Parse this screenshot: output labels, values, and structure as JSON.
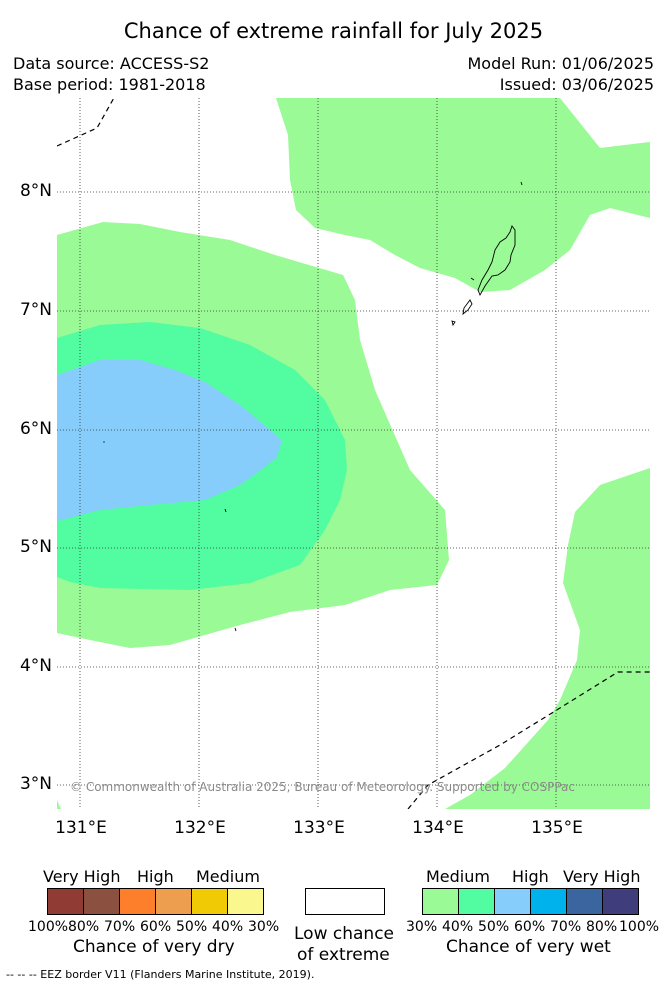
{
  "title": "Chance of extreme rainfall for July 2025",
  "header": {
    "data_source": "Data source: ACCESS-S2",
    "base_period": "Base period: 1981-2018",
    "model_run": "Model Run: 01/06/2025",
    "issued": "Issued: 03/06/2025"
  },
  "map": {
    "lon_ticks": [
      "131°E",
      "132°E",
      "133°E",
      "134°E",
      "135°E"
    ],
    "lat_ticks": [
      "8°N",
      "7°N",
      "6°N",
      "5°N",
      "4°N",
      "3°N"
    ],
    "copyright": "© Commonwealth of Australia 2025, Bureau of Meteorology. Supported by COSPPac",
    "zone_colors": {
      "wet_30_40": "#9afa95",
      "wet_40_50": "#52fca1",
      "wet_50_60": "#87cdfb",
      "land_outline": "#000000",
      "eez_border": "#000000"
    }
  },
  "legend": {
    "dry": {
      "categories": [
        "Very High",
        "High",
        "Medium"
      ],
      "colors": [
        "#903c35",
        "#8b5040",
        "#fe7f2b",
        "#ed9e4e",
        "#f0ca04",
        "#faf78e"
      ],
      "percents": [
        "100%",
        "80%",
        "70%",
        "60%",
        "50%",
        "40%",
        "30%"
      ],
      "caption": "Chance of very dry"
    },
    "low": {
      "caption_line1": "Low chance",
      "caption_line2": "of extreme",
      "color": "#ffffff"
    },
    "wet": {
      "categories": [
        "Medium",
        "High",
        "Very High"
      ],
      "colors": [
        "#9afa95",
        "#52fca1",
        "#87cdfb",
        "#00b2ec",
        "#3a659f",
        "#3f3d7b"
      ],
      "percents": [
        "30%",
        "40%",
        "50%",
        "60%",
        "70%",
        "80%",
        "100%"
      ],
      "caption": "Chance of very wet"
    }
  },
  "footer": {
    "eez_note": "--  --  -- EEZ border V11 (Flanders Marine Institute, 2019)."
  }
}
